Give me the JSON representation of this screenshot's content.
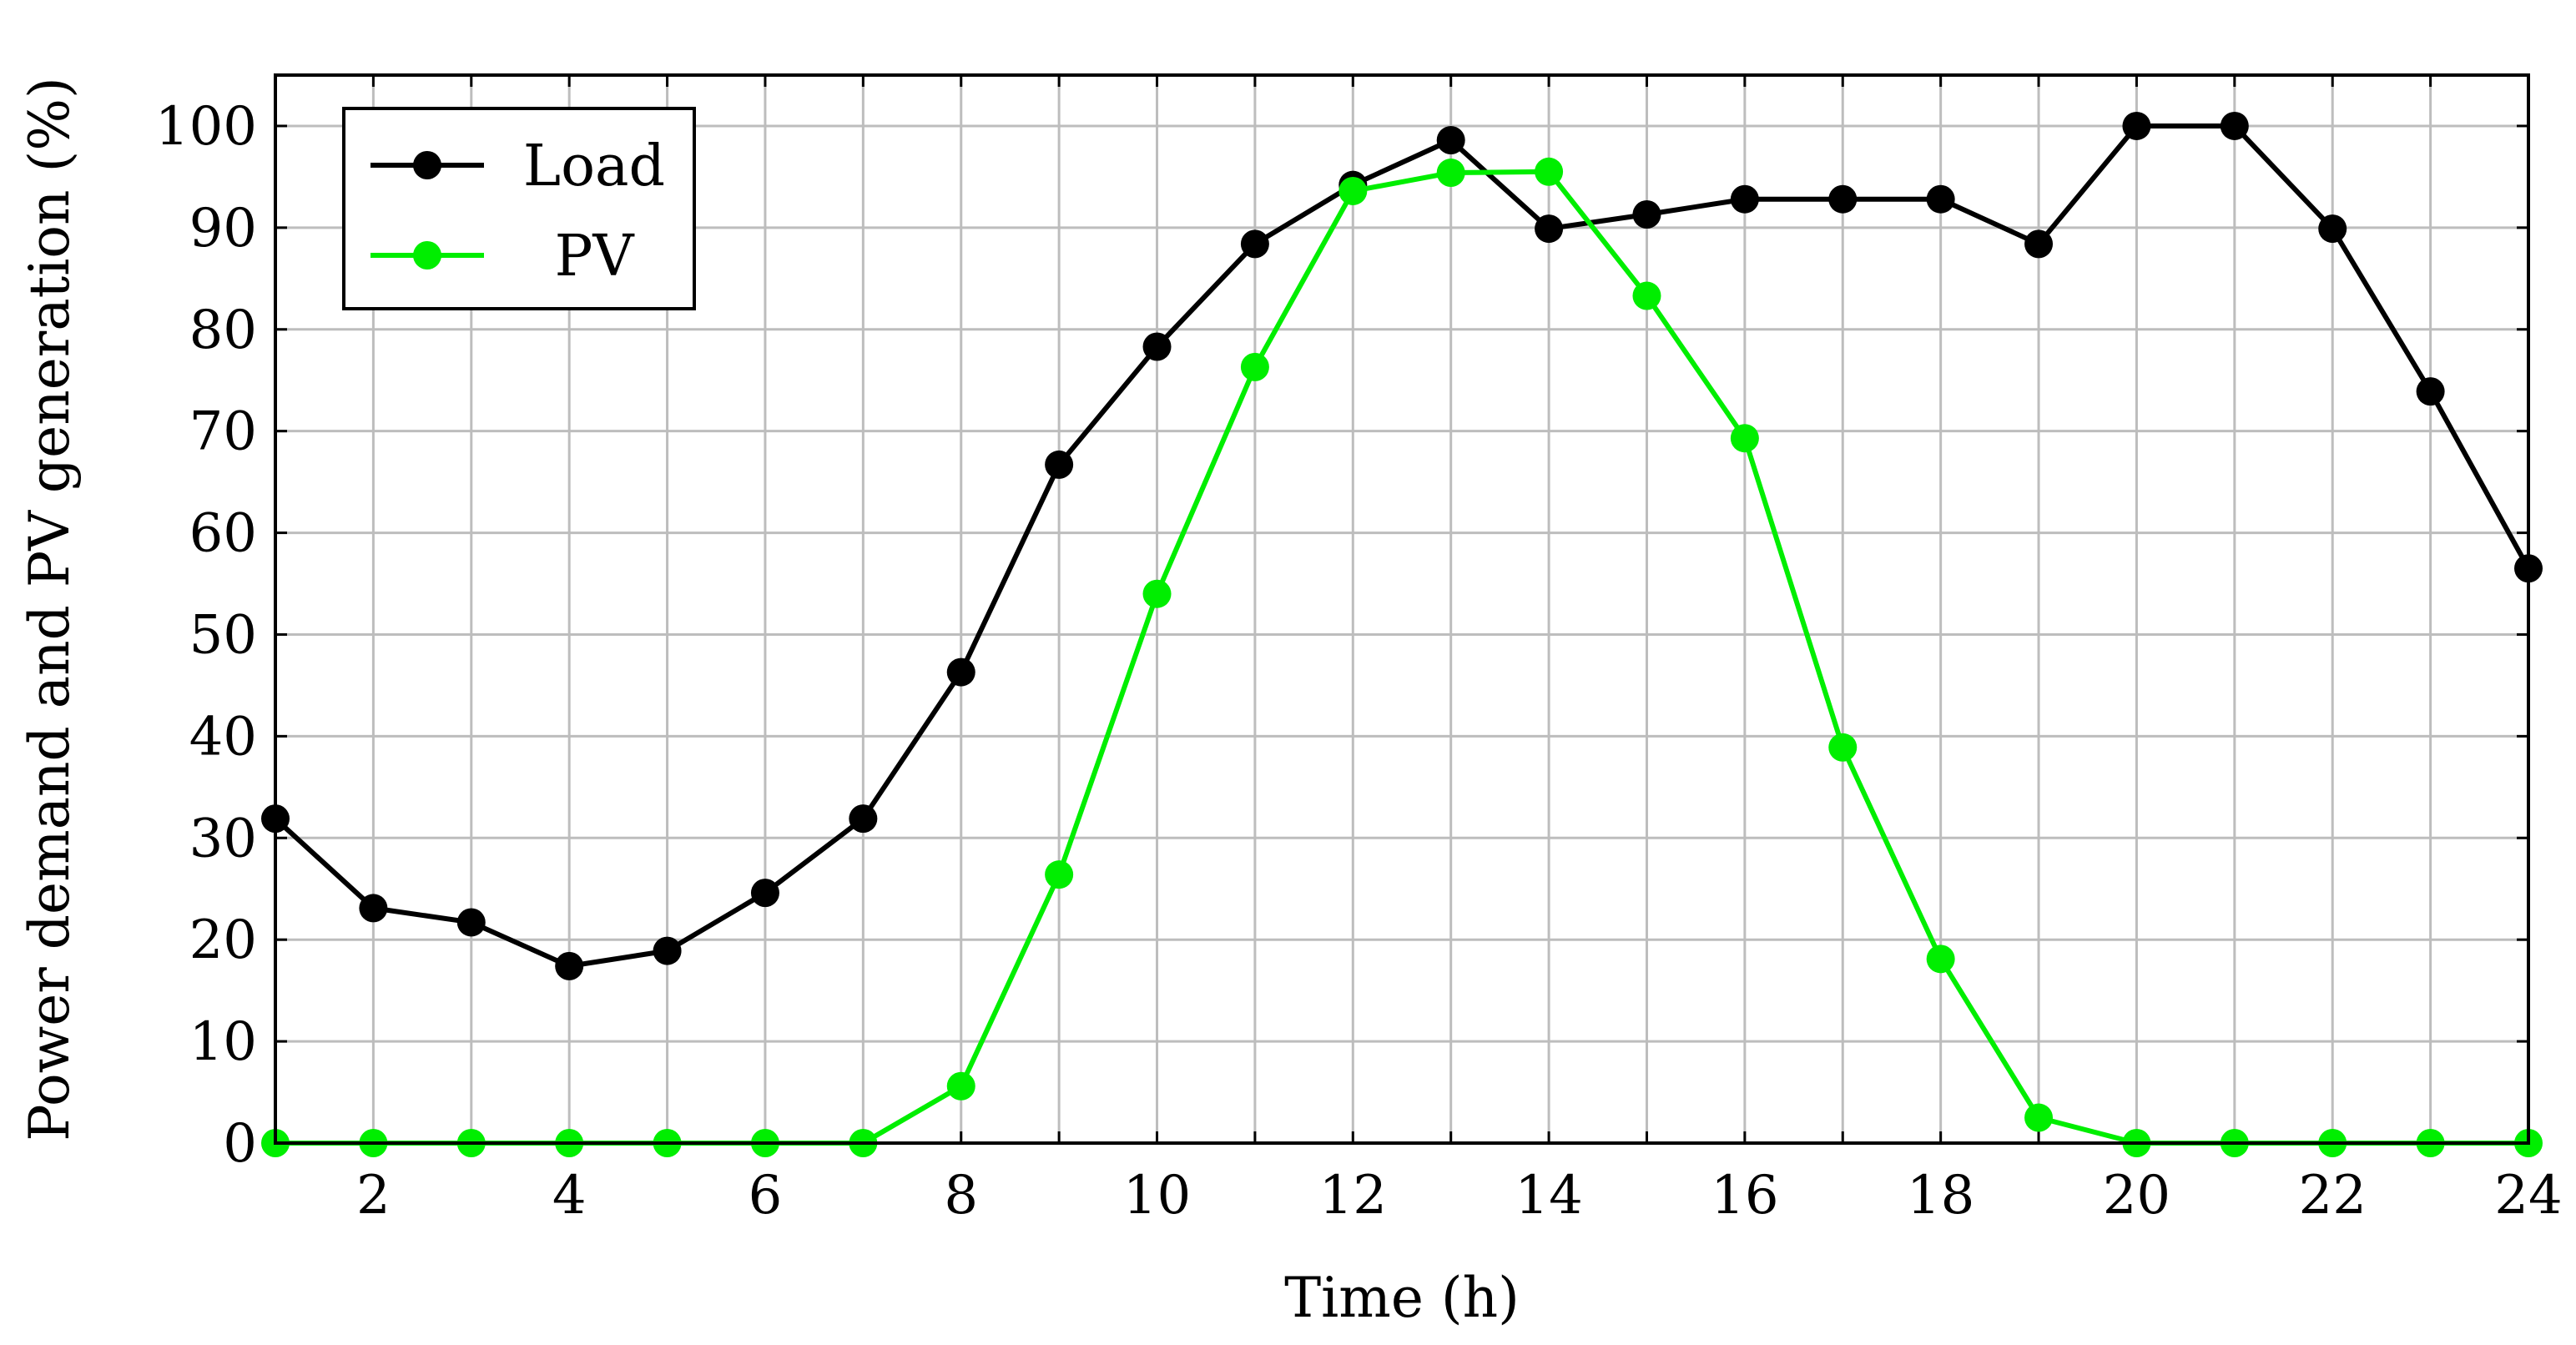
{
  "chart_data": {
    "type": "line",
    "title": "",
    "xlabel": "Time (h)",
    "ylabel": "Power demand and PV generation (%)",
    "xlim": [
      1,
      24
    ],
    "ylim": [
      0,
      105
    ],
    "xticks": [
      2,
      4,
      6,
      8,
      10,
      12,
      14,
      16,
      18,
      20,
      22,
      24
    ],
    "yticks": [
      0,
      10,
      20,
      30,
      40,
      50,
      60,
      70,
      80,
      90,
      100
    ],
    "grid": true,
    "legend_position": "top-left",
    "x": [
      1,
      2,
      3,
      4,
      5,
      6,
      7,
      8,
      9,
      10,
      11,
      12,
      13,
      14,
      15,
      16,
      17,
      18,
      19,
      20,
      21,
      22,
      23,
      24
    ],
    "series": [
      {
        "name": "Load",
        "color": "#000000",
        "values": [
          31.9,
          23.1,
          21.7,
          17.4,
          18.9,
          24.6,
          31.9,
          46.3,
          66.7,
          78.3,
          88.4,
          94.2,
          98.6,
          89.9,
          91.3,
          92.8,
          92.8,
          92.8,
          88.4,
          100.0,
          100.0,
          89.9,
          73.9,
          56.5
        ]
      },
      {
        "name": "PV",
        "color": "#00ee00",
        "values": [
          0,
          0,
          0,
          0,
          0,
          0,
          0,
          5.6,
          26.4,
          54.0,
          76.3,
          93.6,
          95.4,
          95.5,
          83.3,
          69.3,
          38.9,
          18.1,
          2.5,
          0,
          0,
          0,
          0,
          0
        ]
      }
    ]
  }
}
